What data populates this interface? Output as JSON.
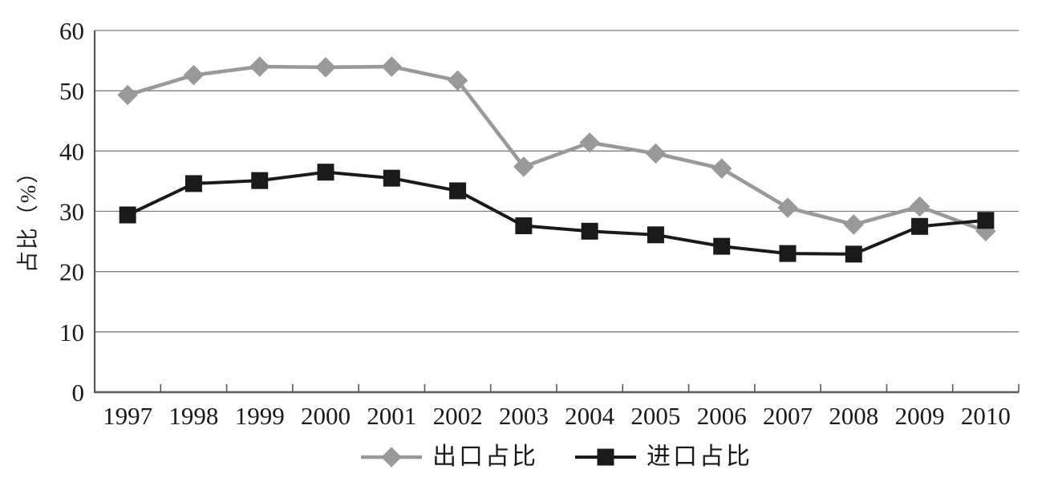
{
  "chart_data": {
    "type": "line",
    "title": "",
    "xlabel": "",
    "ylabel": "占比（%）",
    "categories": [
      "1997",
      "1998",
      "1999",
      "2000",
      "2001",
      "2002",
      "2003",
      "2004",
      "2005",
      "2006",
      "2007",
      "2008",
      "2009",
      "2010"
    ],
    "series": [
      {
        "id": "export",
        "name": "出口占比",
        "marker": "diamond",
        "color": "#999999",
        "line_width": 4.6,
        "values": [
          49.3,
          52.6,
          54.0,
          53.9,
          54.0,
          51.7,
          37.4,
          41.4,
          39.6,
          37.1,
          30.6,
          27.8,
          30.8,
          26.7
        ]
      },
      {
        "id": "import",
        "name": "进口占比",
        "marker": "square",
        "color": "#1a1a1a",
        "line_width": 4.0,
        "values": [
          29.4,
          34.6,
          35.1,
          36.5,
          35.5,
          33.4,
          27.6,
          26.7,
          26.1,
          24.2,
          23.0,
          22.9,
          27.5,
          28.5
        ]
      }
    ],
    "ylim": [
      0,
      60
    ],
    "yticks": [
      0,
      10,
      20,
      30,
      40,
      50,
      60
    ],
    "grid": "horizontal",
    "legend_position": "bottom"
  },
  "colors": {
    "background": "#ffffff",
    "gridline": "#7f7f7f",
    "axis": "#595959",
    "text": "#1a1a1a",
    "series_export": "#999999",
    "series_import": "#1a1a1a"
  }
}
